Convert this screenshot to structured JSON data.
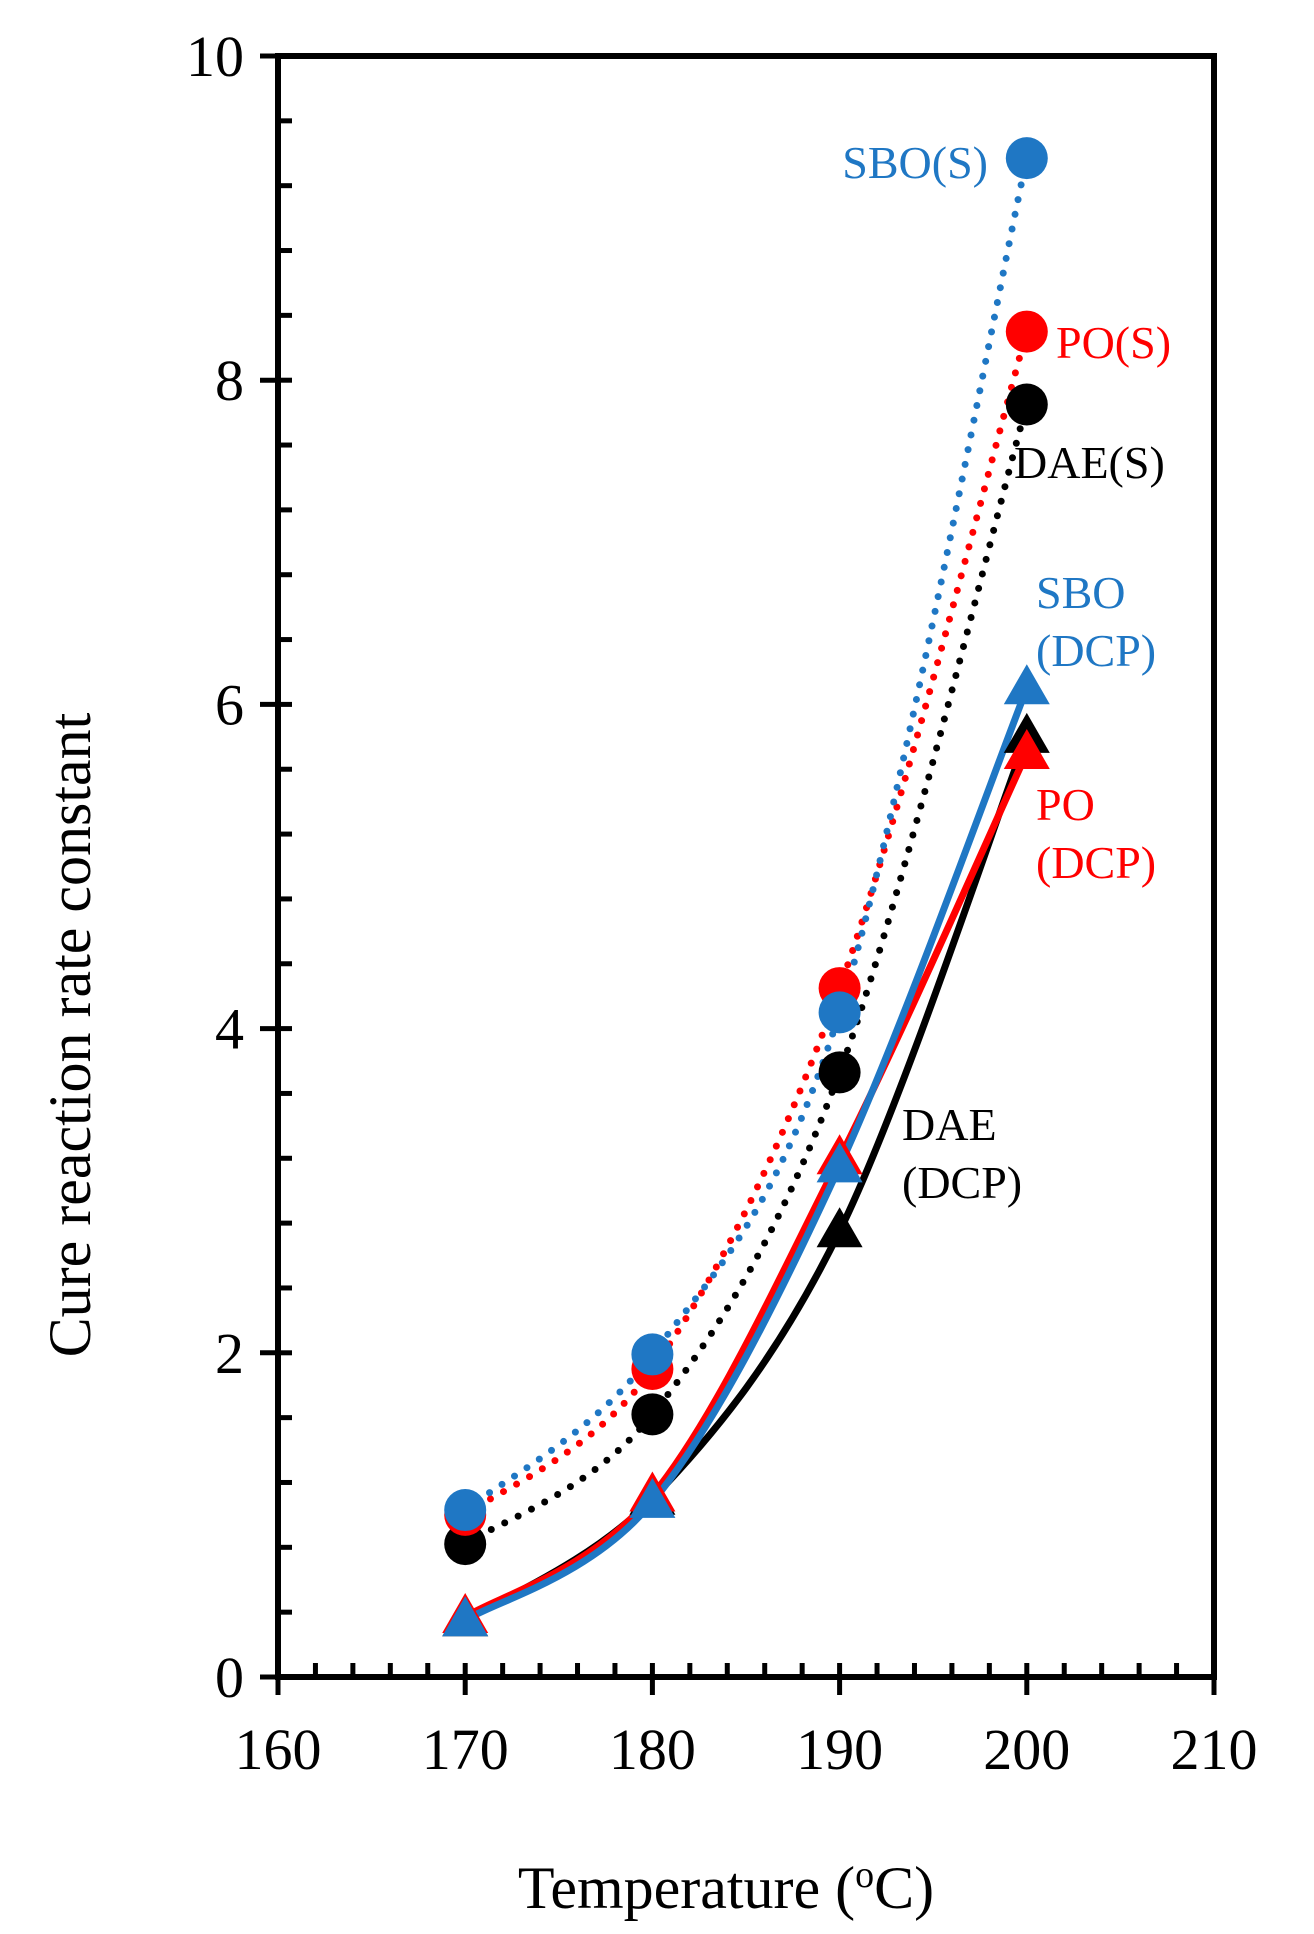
{
  "chart_data": {
    "type": "line",
    "xlabel": "Temperature (",
    "xlabel_superscript": "o",
    "xlabel_suffix": "C)",
    "ylabel": "Cure reaction rate constant",
    "xlim": [
      160,
      210
    ],
    "ylim": [
      0,
      10
    ],
    "x_ticks": [
      "160",
      "170",
      "180",
      "190",
      "200",
      "210"
    ],
    "y_ticks": [
      "0",
      "2",
      "4",
      "6",
      "8",
      "10"
    ],
    "grid": false,
    "colors": {
      "black": "#000000",
      "red": "#ff0000",
      "blue": "#1f77c4"
    },
    "series": [
      {
        "name": "DAE(S)",
        "label_lines": [
          "DAE(S)"
        ],
        "color": "black",
        "marker": "circle",
        "line": "dotted",
        "x": [
          170,
          180,
          190,
          200
        ],
        "y": [
          0.82,
          1.62,
          3.73,
          7.85
        ]
      },
      {
        "name": "PO(S)",
        "label_lines": [
          "PO(S)"
        ],
        "color": "red",
        "marker": "circle",
        "line": "dotted",
        "x": [
          170,
          180,
          190,
          200
        ],
        "y": [
          1.0,
          1.9,
          4.25,
          8.3
        ]
      },
      {
        "name": "SBO(S)",
        "label_lines": [
          "SBO(S)"
        ],
        "color": "blue",
        "marker": "circle",
        "line": "dotted",
        "x": [
          170,
          180,
          190,
          200
        ],
        "y": [
          1.03,
          1.99,
          4.1,
          9.37
        ]
      },
      {
        "name": "DAE (DCP)",
        "label_lines": [
          "DAE",
          "(DCP)"
        ],
        "color": "black",
        "marker": "triangle",
        "line": "solid",
        "x": [
          170,
          180,
          190,
          200
        ],
        "y": [
          0.35,
          1.1,
          2.75,
          5.8
        ]
      },
      {
        "name": "PO (DCP)",
        "label_lines": [
          "PO",
          "(DCP)"
        ],
        "color": "red",
        "marker": "triangle",
        "line": "solid",
        "x": [
          170,
          180,
          190,
          200
        ],
        "y": [
          0.37,
          1.12,
          3.2,
          5.7
        ]
      },
      {
        "name": "SBO (DCP)",
        "label_lines": [
          "SBO",
          "(DCP)"
        ],
        "color": "blue",
        "marker": "triangle",
        "line": "solid",
        "x": [
          170,
          180,
          190,
          200
        ],
        "y": [
          0.35,
          1.08,
          3.15,
          6.1
        ]
      }
    ]
  }
}
